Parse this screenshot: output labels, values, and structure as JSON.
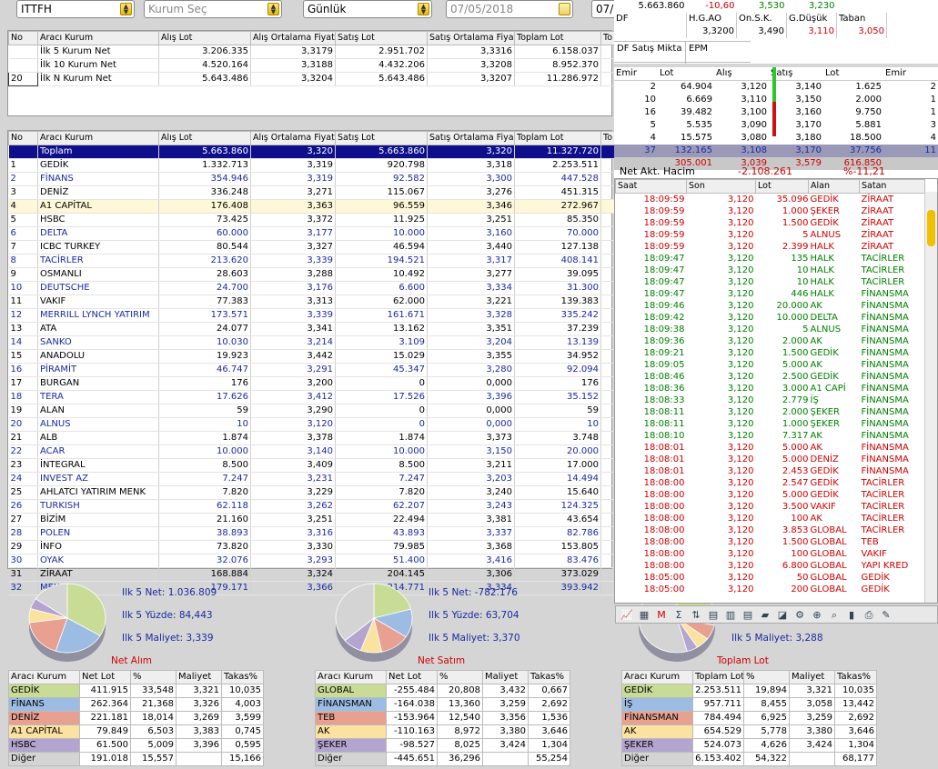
{
  "top": {
    "symbol": "ITTFH",
    "broker_placeholder": "Kurum Seç",
    "period": "Günlük",
    "date": "07/05/2018",
    "date2": "07/"
  },
  "summary_headers": [
    "No",
    "Aracı Kurum",
    "Alış Lot",
    "Alış Ortalama Fiyat",
    "Satış Lot",
    "Satış Ortalama Fiyat",
    "Toplam Lot",
    "To"
  ],
  "summary_rows": [
    [
      "",
      "İlk 5 Kurum Net",
      "3.206.335",
      "3,3179",
      "2.951.702",
      "3,3316",
      "6.158.037"
    ],
    [
      "",
      "İlk 10 Kurum Net",
      "4.520.164",
      "3,3188",
      "4.432.206",
      "3,3208",
      "8.952.370"
    ],
    [
      "20",
      "İlk N Kurum Net",
      "5.643.486",
      "3,3204",
      "5.643.486",
      "3,3207",
      "11.286.972"
    ]
  ],
  "main_headers": [
    "No",
    "Aracı Kurum",
    "Alış Lot",
    "Alış Ortalama Fiyat",
    "Satış Lot",
    "Satış Ortalama Fiya",
    "Toplam Lot",
    "To"
  ],
  "main_rows": [
    [
      "",
      "Toplam",
      "5.663.860",
      "3,320",
      "5.663.860",
      "3,320",
      "11.327.720"
    ],
    [
      "1",
      "GEDİK",
      "1.332.713",
      "3,319",
      "920.798",
      "3,318",
      "2.253.511"
    ],
    [
      "2",
      "FİNANS",
      "354.946",
      "3,319",
      "92.582",
      "3,300",
      "447.528"
    ],
    [
      "3",
      "DENİZ",
      "336.248",
      "3,271",
      "115.067",
      "3,276",
      "451.315"
    ],
    [
      "4",
      "A1 CAPİTAL",
      "176.408",
      "3,363",
      "96.559",
      "3,346",
      "272.967"
    ],
    [
      "5",
      "HSBC",
      "73.425",
      "3,372",
      "11.925",
      "3,251",
      "85.350"
    ],
    [
      "6",
      "DELTA",
      "60.000",
      "3,177",
      "10.000",
      "3,160",
      "70.000"
    ],
    [
      "7",
      "ICBC TURKEY",
      "80.544",
      "3,327",
      "46.594",
      "3,440",
      "127.138"
    ],
    [
      "8",
      "TACİRLER",
      "213.620",
      "3,339",
      "194.521",
      "3,317",
      "408.141"
    ],
    [
      "9",
      "OSMANLI",
      "28.603",
      "3,288",
      "10.492",
      "3,277",
      "39.095"
    ],
    [
      "10",
      "DEUTSCHE",
      "24.700",
      "3,176",
      "6.600",
      "3,334",
      "31.300"
    ],
    [
      "11",
      "VAKIF",
      "77.383",
      "3,313",
      "62.000",
      "3,221",
      "139.383"
    ],
    [
      "12",
      "MERRILL LYNCH YATIRIM",
      "173.571",
      "3,339",
      "161.671",
      "3,328",
      "335.242"
    ],
    [
      "13",
      "ATA",
      "24.077",
      "3,341",
      "13.162",
      "3,351",
      "37.239"
    ],
    [
      "14",
      "SANKO",
      "10.030",
      "3,214",
      "3.109",
      "3,204",
      "13.139"
    ],
    [
      "15",
      "ANADOLU",
      "19.923",
      "3,442",
      "15.029",
      "3,355",
      "34.952"
    ],
    [
      "16",
      "PİRAMİT",
      "46.747",
      "3,291",
      "45.347",
      "3,280",
      "92.094"
    ],
    [
      "17",
      "BURGAN",
      "176",
      "3,200",
      "0",
      "0,000",
      "176"
    ],
    [
      "18",
      "TERA",
      "17.626",
      "3,412",
      "17.526",
      "3,396",
      "35.152"
    ],
    [
      "19",
      "ALAN",
      "59",
      "3,290",
      "0",
      "0,000",
      "59"
    ],
    [
      "20",
      "ALNUS",
      "10",
      "3,120",
      "0",
      "0,000",
      "10"
    ],
    [
      "21",
      "ALB",
      "1.874",
      "3,378",
      "1.874",
      "3,373",
      "3.748"
    ],
    [
      "22",
      "ACAR",
      "10.000",
      "3,140",
      "10.000",
      "3,150",
      "20.000"
    ],
    [
      "23",
      "İNTEGRAL",
      "8.500",
      "3,409",
      "8.500",
      "3,211",
      "17.000"
    ],
    [
      "24",
      "INVEST AZ",
      "7.247",
      "3,231",
      "7.247",
      "3,203",
      "14.494"
    ],
    [
      "25",
      "AHLATCI YATIRIM MENK",
      "7.820",
      "3,229",
      "7.820",
      "3,240",
      "15.640"
    ],
    [
      "26",
      "TURKISH",
      "62.118",
      "3,262",
      "62.207",
      "3,243",
      "124.325"
    ],
    [
      "27",
      "BİZİM",
      "21.160",
      "3,251",
      "22.494",
      "3,381",
      "43.654"
    ],
    [
      "28",
      "POLEN",
      "38.893",
      "3,316",
      "43.893",
      "3,337",
      "82.786"
    ],
    [
      "29",
      "İNFO",
      "73.820",
      "3,330",
      "79.985",
      "3,368",
      "153.805"
    ],
    [
      "30",
      "OYAK",
      "32.076",
      "3,293",
      "51.400",
      "3,416",
      "83.476"
    ],
    [
      "31",
      "ZİRAAT",
      "168.884",
      "3,324",
      "204.145",
      "3,306",
      "373.029"
    ],
    [
      "32",
      "MEKSA",
      "179.171",
      "3,366",
      "214.771",
      "3,334",
      "393.942"
    ]
  ],
  "pies": [
    {
      "title": "Net Alım",
      "line1": "Ilk 5 Net: 1.036.809",
      "line2": "Ilk 5 Yüzde: 84,443",
      "line3": "Ilk 5 Maliyet: 3,339",
      "headers": [
        "Aracı Kurum",
        "Net Lot",
        "%",
        "Maliyet",
        "Takas%"
      ],
      "rows": [
        [
          "GEDİK",
          "411.915",
          "33,548",
          "3,321",
          "10,035"
        ],
        [
          "FİNANS",
          "262.364",
          "21,368",
          "3,326",
          "4,003"
        ],
        [
          "DENİZ",
          "221.181",
          "18,014",
          "3,269",
          "3,599"
        ],
        [
          "A1 CAPİTAL",
          "79.849",
          "6,503",
          "3,383",
          "0,745"
        ],
        [
          "HSBC",
          "61.500",
          "5,009",
          "3,396",
          "0,595"
        ],
        [
          "Diğer",
          "191.018",
          "15,557",
          "",
          "15,166"
        ]
      ],
      "values": [
        33.548,
        21.368,
        18.014,
        6.503,
        5.009,
        15.557
      ]
    },
    {
      "title": "Net Satım",
      "line1": "Ilk 5 Net: -782.176",
      "line2": "Ilk 5 Yüzde: 63,704",
      "line3": "Ilk 5 Maliyet: 3,370",
      "headers": [
        "Aracı Kurum",
        "Net Lot",
        "%",
        "Maliyet",
        "Takas%"
      ],
      "rows": [
        [
          "GLOBAL",
          "-255.484",
          "20,808",
          "3,432",
          "0,667"
        ],
        [
          "FİNANSMAN",
          "-164.038",
          "13,360",
          "3,259",
          "2,692"
        ],
        [
          "TEB",
          "-153.964",
          "12,540",
          "3,356",
          "1,536"
        ],
        [
          "AK",
          "-110.163",
          "8,972",
          "3,380",
          "3,646"
        ],
        [
          "ŞEKER",
          "-98.527",
          "8,025",
          "3,424",
          "1,304"
        ],
        [
          "Diğer",
          "-445.651",
          "36,296",
          "",
          "55,254"
        ]
      ],
      "values": [
        20.808,
        13.36,
        12.54,
        8.972,
        8.025,
        36.296
      ]
    },
    {
      "title": "Toplam Lot",
      "line1": "",
      "line2": "",
      "line3": "Ilk 5 Maliyet: 3,288",
      "headers": [
        "Aracı Kurum",
        "Toplam Lot",
        "%",
        "Maliyet",
        "Takas%"
      ],
      "rows": [
        [
          "GEDİK",
          "2.253.511",
          "19,894",
          "3,321",
          "10,035"
        ],
        [
          "İŞ",
          "957.711",
          "8,455",
          "3,058",
          "13,442"
        ],
        [
          "FİNANSMAN",
          "784.494",
          "6,925",
          "3,259",
          "2,692"
        ],
        [
          "AK",
          "654.529",
          "5,778",
          "3,380",
          "3,646"
        ],
        [
          "ŞEKER",
          "524.073",
          "4,626",
          "3,424",
          "1,304"
        ],
        [
          "Diğer",
          "6.153.402",
          "54,322",
          "",
          "68,177"
        ]
      ],
      "values": [
        19.894,
        8.455,
        6.925,
        5.778,
        4.626,
        54.322
      ]
    }
  ],
  "row_colors": [
    "#c8dc96",
    "#9cbce4",
    "#e8a090",
    "#fce2a0",
    "#b4a4d0",
    "#d4d4d4"
  ],
  "quote": {
    "last": "5.663.860",
    "chg": "-10,60",
    "v1": "3,530",
    "v2": "3,230",
    "hdr": [
      "DF",
      "H.G.AO",
      "On.S.K.",
      "G.Düşük",
      "Taban"
    ],
    "row": [
      "",
      "3,3200",
      "3,490",
      "3,110",
      "3,050"
    ],
    "df_label": "DF Satış Mikta",
    "epm": "EPM"
  },
  "depth": {
    "headers": [
      "Emir",
      "Lot",
      "Alış",
      "Satış",
      "Lot",
      "Emir"
    ],
    "rows": [
      [
        "2",
        "64.904",
        "3,120",
        "3,140",
        "1.625",
        "2"
      ],
      [
        "10",
        "6.669",
        "3,110",
        "3,150",
        "2.000",
        "1"
      ],
      [
        "16",
        "39.482",
        "3,100",
        "3,160",
        "9.750",
        "1"
      ],
      [
        "5",
        "5.535",
        "3,090",
        "3,170",
        "5.881",
        "3"
      ],
      [
        "4",
        "15.575",
        "3,080",
        "3,180",
        "18.500",
        "4"
      ]
    ],
    "total": [
      "37",
      "132.165",
      "3,108",
      "3,170",
      "37.756",
      "11"
    ],
    "total2": [
      "",
      "305.001",
      "3,039",
      "3,579",
      "616.850",
      ""
    ],
    "net_label": "Net Akt. Hacim",
    "net_value": "-2.108.261",
    "net_pct": "%-11,21"
  },
  "trades": {
    "headers": [
      "Saat",
      "Son",
      "Lot",
      "Alan",
      "Satan"
    ],
    "rows": [
      [
        "18:09:59",
        "3,120",
        "35.096",
        "GEDİK",
        "ZİRAAT",
        "r"
      ],
      [
        "18:09:59",
        "3,120",
        "1.000",
        "ŞEKER",
        "ZİRAAT",
        "r"
      ],
      [
        "18:09:59",
        "3,120",
        "1.500",
        "GEDİK",
        "ZİRAAT",
        "r"
      ],
      [
        "18:09:59",
        "3,120",
        "5",
        "ALNUS",
        "ZİRAAT",
        "r"
      ],
      [
        "18:09:59",
        "3,120",
        "2.399",
        "HALK",
        "ZİRAAT",
        "r"
      ],
      [
        "18:09:47",
        "3,120",
        "135",
        "HALK",
        "TACİRLER",
        "g"
      ],
      [
        "18:09:47",
        "3,120",
        "10",
        "HALK",
        "TACİRLER",
        "g"
      ],
      [
        "18:09:47",
        "3,120",
        "10",
        "HALK",
        "TACİRLER",
        "g"
      ],
      [
        "18:09:47",
        "3,120",
        "446",
        "HALK",
        "FİNANSMA",
        "g"
      ],
      [
        "18:09:46",
        "3,120",
        "20.000",
        "AK",
        "FİNANSMA",
        "g"
      ],
      [
        "18:09:42",
        "3,120",
        "10.000",
        "DELTA",
        "FİNANSMA",
        "g"
      ],
      [
        "18:09:38",
        "3,120",
        "5",
        "ALNUS",
        "FİNANSMA",
        "g"
      ],
      [
        "18:09:36",
        "3,120",
        "2.000",
        "AK",
        "FİNANSMA",
        "g"
      ],
      [
        "18:09:21",
        "3,120",
        "1.500",
        "GEDİK",
        "FİNANSMA",
        "g"
      ],
      [
        "18:09:05",
        "3,120",
        "5.000",
        "AK",
        "FİNANSMA",
        "g"
      ],
      [
        "18:08:46",
        "3,120",
        "2.500",
        "GEDİK",
        "FİNANSMA",
        "g"
      ],
      [
        "18:08:36",
        "3,120",
        "3.000",
        "A1 CAPİ",
        "FİNANSMA",
        "g"
      ],
      [
        "18:08:33",
        "3,120",
        "2.779",
        "İŞ",
        "FİNANSMA",
        "g"
      ],
      [
        "18:08:11",
        "3,120",
        "2.000",
        "ŞEKER",
        "FİNANSMA",
        "g"
      ],
      [
        "18:08:11",
        "3,120",
        "1.000",
        "ŞEKER",
        "FİNANSMA",
        "g"
      ],
      [
        "18:08:10",
        "3,120",
        "7.317",
        "AK",
        "FİNANSMA",
        "g"
      ],
      [
        "18:08:01",
        "3,120",
        "5.000",
        "AK",
        "FİNANSMA",
        "r"
      ],
      [
        "18:08:01",
        "3,120",
        "5.000",
        "DENİZ",
        "FİNANSMA",
        "r"
      ],
      [
        "18:08:01",
        "3,120",
        "2.453",
        "GEDİK",
        "FİNANSMA",
        "r"
      ],
      [
        "18:08:00",
        "3,120",
        "2.547",
        "GEDİK",
        "TACİRLER",
        "r"
      ],
      [
        "18:08:00",
        "3,120",
        "5.000",
        "GEDİK",
        "TACİRLER",
        "r"
      ],
      [
        "18:08:00",
        "3,120",
        "3.500",
        "VAKIF",
        "TACİRLER",
        "r"
      ],
      [
        "18:08:00",
        "3,120",
        "100",
        "AK",
        "TACİRLER",
        "r"
      ],
      [
        "18:08:00",
        "3,120",
        "3.853",
        "GLOBAL",
        "TACİRLER",
        "r"
      ],
      [
        "18:08:00",
        "3,120",
        "1.500",
        "GLOBAL",
        "TEB",
        "r"
      ],
      [
        "18:08:00",
        "3,120",
        "100",
        "GLOBAL",
        "VAKIF",
        "r"
      ],
      [
        "18:08:00",
        "3,120",
        "6.800",
        "GLOBAL",
        "YAPI KRED",
        "r"
      ],
      [
        "18:05:00",
        "3,120",
        "50",
        "GLOBAL",
        "GEDİK",
        "r"
      ],
      [
        "18:05:00",
        "3,120",
        "200",
        "GLOBAL",
        "GEDİK",
        "r"
      ]
    ]
  },
  "toolbar_icons": [
    "chart-icon",
    "table-icon",
    "m-icon",
    "sigma-icon",
    "arrows-icon",
    "document-icon",
    "calendar-icon",
    "document2-icon",
    "folder-icon",
    "graph-icon",
    "gear-icon",
    "binoculars-icon",
    "search-icon",
    "bar-icon",
    "print-icon",
    "edit-icon"
  ]
}
